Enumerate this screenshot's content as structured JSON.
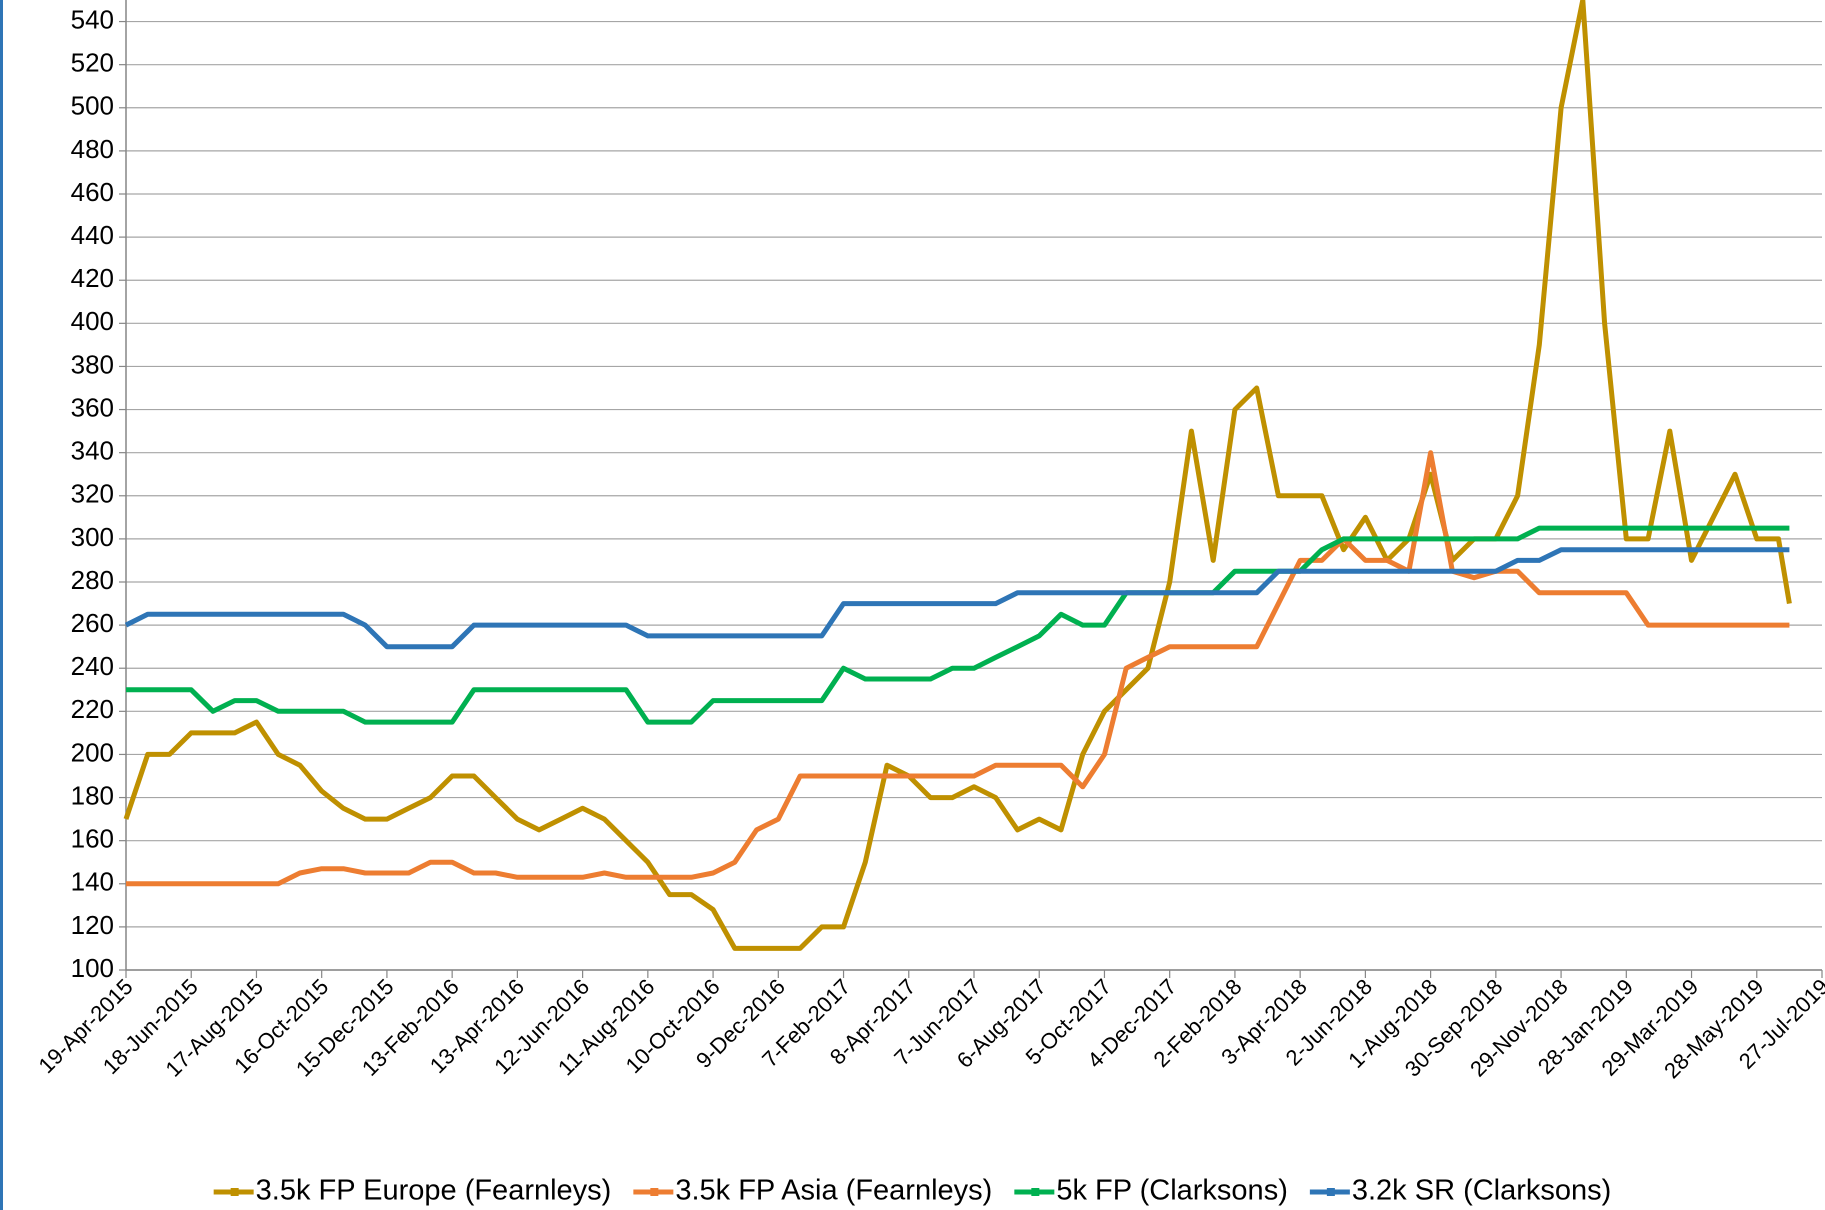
{
  "chart_data": {
    "type": "line",
    "x": [
      "19-Apr-2015",
      "9-May-2015",
      "29-May-2015",
      "18-Jun-2015",
      "8-Jul-2015",
      "28-Jul-2015",
      "17-Aug-2015",
      "6-Sep-2015",
      "26-Sep-2015",
      "16-Oct-2015",
      "5-Nov-2015",
      "25-Nov-2015",
      "15-Dec-2015",
      "4-Jan-2016",
      "24-Jan-2016",
      "13-Feb-2016",
      "4-Mar-2016",
      "24-Mar-2016",
      "13-Apr-2016",
      "3-May-2016",
      "23-May-2016",
      "12-Jun-2016",
      "2-Jul-2016",
      "22-Jul-2016",
      "11-Aug-2016",
      "31-Aug-2016",
      "20-Sep-2016",
      "10-Oct-2016",
      "30-Oct-2016",
      "19-Nov-2016",
      "9-Dec-2016",
      "29-Dec-2016",
      "18-Jan-2017",
      "7-Feb-2017",
      "27-Feb-2017",
      "19-Mar-2017",
      "8-Apr-2017",
      "28-Apr-2017",
      "18-May-2017",
      "7-Jun-2017",
      "27-Jun-2017",
      "17-Jul-2017",
      "6-Aug-2017",
      "26-Aug-2017",
      "15-Sep-2017",
      "5-Oct-2017",
      "25-Oct-2017",
      "14-Nov-2017",
      "4-Dec-2017",
      "24-Dec-2017",
      "13-Jan-2018",
      "2-Feb-2018",
      "22-Feb-2018",
      "14-Mar-2018",
      "3-Apr-2018",
      "23-Apr-2018",
      "13-May-2018",
      "2-Jun-2018",
      "22-Jun-2018",
      "12-Jul-2018",
      "1-Aug-2018",
      "21-Aug-2018",
      "10-Sep-2018",
      "30-Sep-2018",
      "20-Oct-2018",
      "9-Nov-2018",
      "29-Nov-2018",
      "19-Dec-2018",
      "8-Jan-2019",
      "28-Jan-2019",
      "17-Feb-2019",
      "9-Mar-2019",
      "29-Mar-2019",
      "18-Apr-2019",
      "8-May-2019",
      "28-May-2019",
      "17-Jun-2019",
      "27-Jun-2019"
    ],
    "series": [
      {
        "name": "3.5k FP Europe (Fearnleys)",
        "color": "#BF9000",
        "values": [
          170,
          200,
          200,
          210,
          210,
          210,
          215,
          200,
          195,
          183,
          175,
          170,
          170,
          175,
          180,
          190,
          190,
          180,
          170,
          165,
          170,
          175,
          170,
          160,
          150,
          135,
          135,
          128,
          110,
          110,
          110,
          110,
          120,
          120,
          150,
          195,
          190,
          180,
          180,
          185,
          180,
          165,
          170,
          165,
          200,
          220,
          230,
          240,
          280,
          350,
          290,
          360,
          370,
          320,
          320,
          320,
          295,
          310,
          290,
          300,
          330,
          290,
          300,
          300,
          320,
          390,
          500,
          550,
          400,
          300,
          300,
          350,
          290,
          310,
          330,
          300,
          300,
          270
        ]
      },
      {
        "name": "3.5k FP Asia (Fearnleys)",
        "color": "#ED7D31",
        "values": [
          140,
          140,
          140,
          140,
          140,
          140,
          140,
          140,
          145,
          147,
          147,
          145,
          145,
          145,
          150,
          150,
          145,
          145,
          143,
          143,
          143,
          143,
          145,
          143,
          143,
          143,
          143,
          145,
          150,
          165,
          170,
          190,
          190,
          190,
          190,
          190,
          190,
          190,
          190,
          190,
          195,
          195,
          195,
          195,
          185,
          200,
          240,
          245,
          250,
          250,
          250,
          250,
          250,
          270,
          290,
          290,
          300,
          290,
          290,
          285,
          340,
          285,
          282,
          285,
          285,
          275,
          275,
          275,
          275,
          275,
          260,
          260,
          260,
          260,
          260,
          260,
          260,
          260
        ]
      },
      {
        "name": "5k FP (Clarksons)",
        "color": "#00B050",
        "values": [
          230,
          230,
          230,
          230,
          220,
          225,
          225,
          220,
          220,
          220,
          220,
          215,
          215,
          215,
          215,
          215,
          230,
          230,
          230,
          230,
          230,
          230,
          230,
          230,
          215,
          215,
          215,
          225,
          225,
          225,
          225,
          225,
          225,
          240,
          235,
          235,
          235,
          235,
          240,
          240,
          245,
          250,
          255,
          265,
          260,
          260,
          275,
          275,
          275,
          275,
          275,
          285,
          285,
          285,
          285,
          295,
          300,
          300,
          300,
          300,
          300,
          300,
          300,
          300,
          300,
          305,
          305,
          305,
          305,
          305,
          305,
          305,
          305,
          305,
          305,
          305,
          305,
          305
        ]
      },
      {
        "name": "3.2k SR (Clarksons)",
        "color": "#2E75B6",
        "values": [
          260,
          265,
          265,
          265,
          265,
          265,
          265,
          265,
          265,
          265,
          265,
          260,
          250,
          250,
          250,
          250,
          260,
          260,
          260,
          260,
          260,
          260,
          260,
          260,
          255,
          255,
          255,
          255,
          255,
          255,
          255,
          255,
          255,
          270,
          270,
          270,
          270,
          270,
          270,
          270,
          270,
          275,
          275,
          275,
          275,
          275,
          275,
          275,
          275,
          275,
          275,
          275,
          275,
          285,
          285,
          285,
          285,
          285,
          285,
          285,
          285,
          285,
          285,
          285,
          290,
          290,
          295,
          295,
          295,
          295,
          295,
          295,
          295,
          295,
          295,
          295,
          295,
          295
        ]
      }
    ],
    "xlim": [
      "19-Apr-2015",
      "27-Jul-2019"
    ],
    "xticks": [
      "19-Apr-2015",
      "18-Jun-2015",
      "17-Aug-2015",
      "16-Oct-2015",
      "15-Dec-2015",
      "13-Feb-2016",
      "13-Apr-2016",
      "12-Jun-2016",
      "11-Aug-2016",
      "10-Oct-2016",
      "9-Dec-2016",
      "7-Feb-2017",
      "8-Apr-2017",
      "7-Jun-2017",
      "6-Aug-2017",
      "5-Oct-2017",
      "4-Dec-2017",
      "2-Feb-2018",
      "3-Apr-2018",
      "2-Jun-2018",
      "1-Aug-2018",
      "30-Sep-2018",
      "29-Nov-2018",
      "28-Jan-2019",
      "29-Mar-2019",
      "28-May-2019",
      "27-Jul-2019"
    ],
    "ylim": [
      100,
      550
    ],
    "yticks": [
      100,
      120,
      140,
      160,
      180,
      200,
      220,
      240,
      260,
      280,
      300,
      320,
      340,
      360,
      380,
      400,
      420,
      440,
      460,
      480,
      500,
      520,
      540
    ],
    "grid": true,
    "legend": "bottom"
  }
}
